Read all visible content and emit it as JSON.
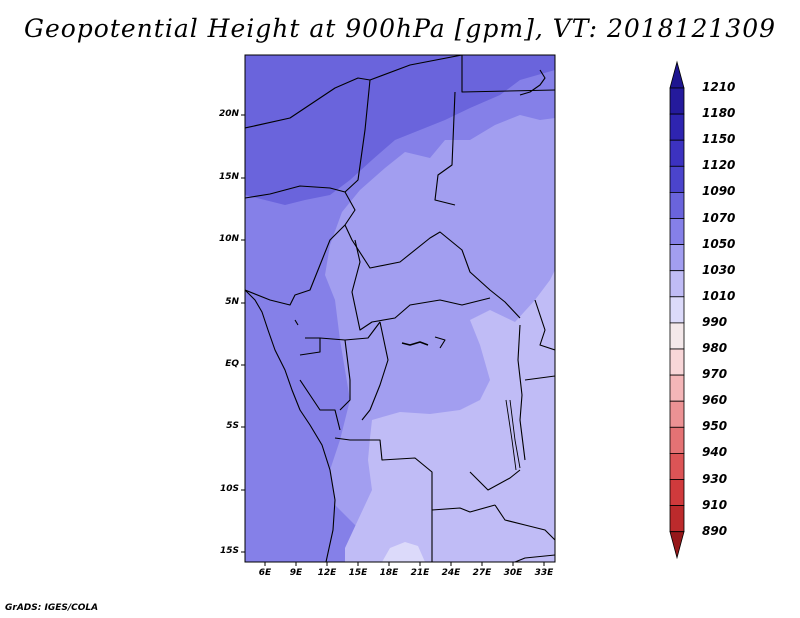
{
  "title": "Geopotential Height at 900hPa [gpm], VT: 2018121309",
  "footer": "GrADS: IGES/COLA",
  "lat_labels": [
    "20N",
    "15N",
    "10N",
    "5N",
    "EQ",
    "5S",
    "10S",
    "15S"
  ],
  "lon_labels": [
    "6E",
    "9E",
    "12E",
    "15E",
    "18E",
    "21E",
    "24E",
    "27E",
    "30E",
    "33E"
  ],
  "colorbar": {
    "labels": [
      "1210",
      "1180",
      "1150",
      "1120",
      "1090",
      "1070",
      "1050",
      "1030",
      "1010",
      "990",
      "980",
      "970",
      "960",
      "950",
      "940",
      "930",
      "910",
      "890"
    ],
    "colors": [
      "#241a9c",
      "#2e24b0",
      "#3c32c0",
      "#4b44cc",
      "#6a64dc",
      "#8580e8",
      "#a29ef0",
      "#c0bcf6",
      "#dcdafa",
      "#f4e8ea",
      "#f8d6d8",
      "#f4b6b8",
      "#ec9294",
      "#e47274",
      "#dc5456",
      "#d03a3c",
      "#bc2a2c",
      "#a01c1e"
    ],
    "top_arrow_color": "#1e1590",
    "bottom_arrow_color": "#96181a"
  },
  "map_colors": {
    "level_1090": "#6a64dc",
    "level_1070": "#8580e8",
    "level_1050": "#a29ef0",
    "level_1030": "#c0bcf6",
    "level_1010": "#dcdafa",
    "borders": "#000000"
  }
}
